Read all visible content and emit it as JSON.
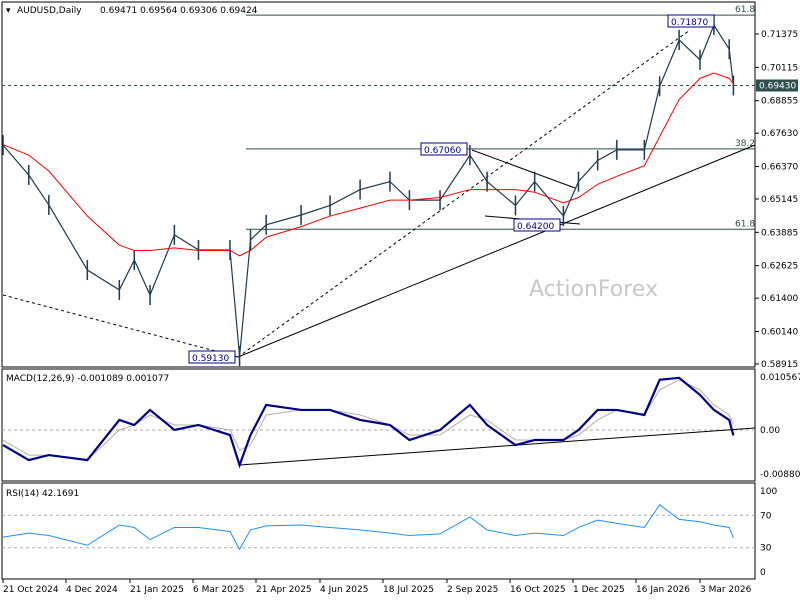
{
  "header": {
    "symbol": "AUDUSD,Daily",
    "ohlc": "0.69471 0.69564 0.69306 0.69424"
  },
  "watermark": "ActionForex",
  "colors": {
    "bars": "#1e3a4f",
    "ma": "#ff0000",
    "macd": "#00008b",
    "signal": "#b0b0b0",
    "rsi": "#1e90ff",
    "price_tag_bg": "#2f4f4f"
  },
  "chart_data": [
    {
      "type": "line",
      "panel": "price",
      "title": "AUDUSD,Daily",
      "ylim": [
        0.58915,
        0.7187
      ],
      "y_ticks": [
        "0.71375",
        "0.70115",
        "0.68855",
        "0.67630",
        "0.66370",
        "0.65145",
        "0.63885",
        "0.62625",
        "0.61400",
        "0.60140",
        "0.58915"
      ],
      "current_price": "0.69430",
      "x_ticks": [
        [
          "21 Oct 2024",
          "2024-10-21"
        ],
        [
          "4 Dec 2024",
          "2024-12-04"
        ],
        [
          "21 Jan 2025",
          "2025-01-21"
        ],
        [
          "6 Mar 2025",
          "2025-03-06"
        ],
        [
          "21 Apr 2025",
          "2025-04-21"
        ],
        [
          "4 Jun 2025",
          "2025-06-04"
        ],
        [
          "18 Jul 2025",
          "2025-07-18"
        ],
        [
          "2 Sep 2025",
          "2025-09-02"
        ],
        [
          "16 Oct 2025",
          "2025-10-16"
        ],
        [
          "1 Dec 2025",
          "2025-12-01"
        ],
        [
          "16 Jan 2026",
          "2026-01-16"
        ],
        [
          "3 Mar 2026",
          "2026-03-03"
        ]
      ],
      "x": [
        "2024-10-21",
        "2024-11-08",
        "2024-11-22",
        "2024-12-20",
        "2025-01-13",
        "2025-01-24",
        "2025-02-04",
        "2025-02-21",
        "2025-03-10",
        "2025-04-02",
        "2025-04-09",
        "2025-04-17",
        "2025-04-28",
        "2025-05-22",
        "2025-06-11",
        "2025-07-02",
        "2025-07-23",
        "2025-08-06",
        "2025-08-28",
        "2025-09-18",
        "2025-09-30",
        "2025-10-20",
        "2025-11-03",
        "2025-11-24",
        "2025-12-05",
        "2025-12-19",
        "2026-01-02",
        "2026-01-22",
        "2026-02-02",
        "2026-02-16",
        "2026-03-03",
        "2026-03-13",
        "2026-03-24",
        "2026-03-27"
      ],
      "series": [
        {
          "role": "price",
          "values": [
            0.6718,
            0.6605,
            0.6492,
            0.6246,
            0.6171,
            0.6284,
            0.6152,
            0.6379,
            0.6322,
            0.6322,
            0.5921,
            0.636,
            0.6417,
            0.6454,
            0.649,
            0.655,
            0.658,
            0.651,
            0.651,
            0.668,
            0.658,
            0.649,
            0.658,
            0.645,
            0.658,
            0.666,
            0.67,
            0.67,
            0.694,
            0.7115,
            0.704,
            0.7171,
            0.708,
            0.6943
          ]
        },
        {
          "role": "moving-average",
          "values": [
            0.672,
            0.668,
            0.662,
            0.645,
            0.634,
            0.632,
            0.632,
            0.633,
            0.632,
            0.632,
            0.63,
            0.632,
            0.637,
            0.641,
            0.645,
            0.648,
            0.651,
            0.651,
            0.652,
            0.655,
            0.655,
            0.655,
            0.654,
            0.65,
            0.652,
            0.657,
            0.66,
            0.664,
            0.675,
            0.689,
            0.697,
            0.699,
            0.697,
            0.695
          ]
        }
      ],
      "annotations": {
        "price_labels": [
          "0.71870",
          "0.67060",
          "0.64200",
          "0.59130"
        ],
        "fib_levels": [
          {
            "label": "61.8",
            "price": 0.7209
          },
          {
            "label": "38.2",
            "price": 0.67035
          },
          {
            "label": "61.8",
            "price": 0.64
          }
        ]
      }
    },
    {
      "type": "line",
      "panel": "macd",
      "title": "MACD(12,26,9) -0.001089 0.001077",
      "ylim": [
        -0.008808,
        0.010567
      ],
      "y_ticks": [
        "0.010567",
        "0.00",
        "-0.008808"
      ],
      "series": [
        {
          "role": "macd",
          "values": [
            -0.003,
            -0.006,
            -0.005,
            -0.006,
            0.002,
            0.001,
            0.004,
            0.0,
            0.001,
            -0.001,
            -0.007,
            -0.001,
            0.005,
            0.004,
            0.004,
            0.002,
            0.001,
            -0.002,
            0.0,
            0.005,
            0.001,
            -0.003,
            -0.002,
            -0.002,
            0.0,
            0.004,
            0.004,
            0.003,
            0.01,
            0.0104,
            0.007,
            0.004,
            0.002,
            -0.001089
          ]
        },
        {
          "role": "signal",
          "values": [
            -0.002,
            -0.005,
            -0.005,
            -0.006,
            0.0,
            0.001,
            0.003,
            0.001,
            0.001,
            0.0,
            -0.004,
            -0.003,
            0.003,
            0.004,
            0.004,
            0.003,
            0.001,
            -0.001,
            -0.001,
            0.003,
            0.002,
            -0.002,
            -0.002,
            -0.002,
            -0.001,
            0.002,
            0.004,
            0.003,
            0.008,
            0.01,
            0.008,
            0.005,
            0.003,
            0.001077
          ]
        }
      ]
    },
    {
      "type": "line",
      "panel": "rsi",
      "title": "RSI(14) 42.1691",
      "ylim": [
        0,
        100
      ],
      "y_ticks": [
        "100",
        "70",
        "30",
        "0"
      ],
      "levels": [
        70,
        30
      ],
      "series": [
        {
          "role": "rsi",
          "values": [
            43,
            48,
            45,
            33,
            58,
            55,
            40,
            55,
            55,
            50,
            28,
            52,
            57,
            58,
            55,
            52,
            48,
            45,
            47,
            68,
            52,
            45,
            48,
            45,
            55,
            64,
            60,
            55,
            83,
            65,
            62,
            58,
            55,
            42.1691
          ]
        }
      ]
    }
  ]
}
